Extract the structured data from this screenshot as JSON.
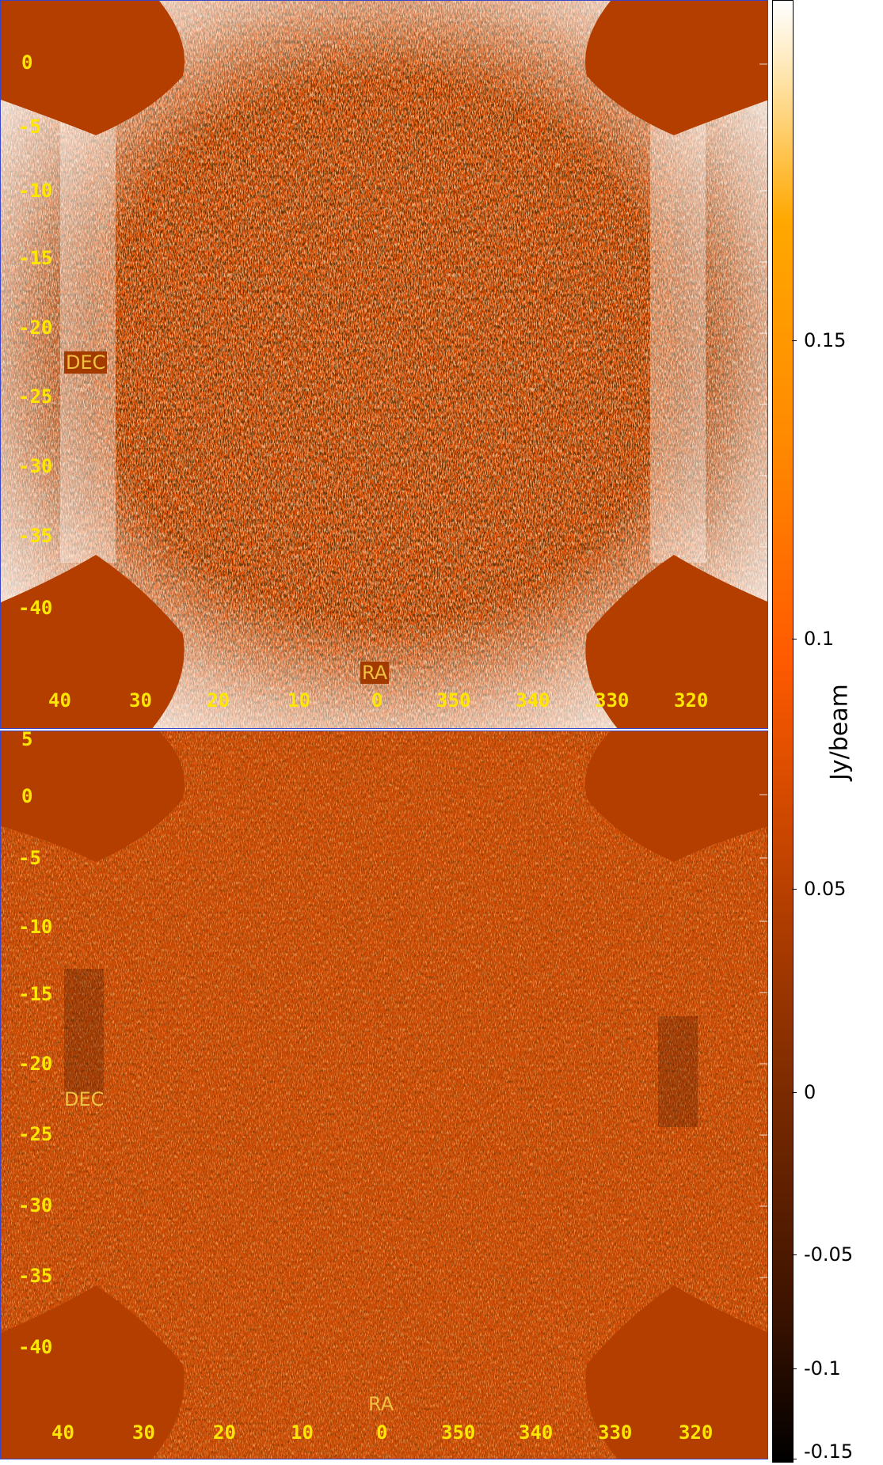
{
  "panels": [
    {
      "id": "top",
      "dec_ticks": [
        "0",
        "-5",
        "-10",
        "-15",
        "-20",
        "-25",
        "-30",
        "-35",
        "-40"
      ],
      "ra_ticks": [
        "40",
        "30",
        "20",
        "10",
        "0",
        "350",
        "340",
        "330",
        "320"
      ],
      "xlabel": "RA",
      "ylabel": "DEC",
      "noise_level": "high"
    },
    {
      "id": "bottom",
      "dec_ticks": [
        "5",
        "0",
        "-5",
        "-10",
        "-15",
        "-20",
        "-25",
        "-30",
        "-35",
        "-40"
      ],
      "ra_ticks": [
        "40",
        "30",
        "20",
        "10",
        "0",
        "350",
        "340",
        "330",
        "320"
      ],
      "xlabel": "RA",
      "ylabel": "DEC",
      "noise_level": "low"
    }
  ],
  "colorbar": {
    "title": "Jy/beam",
    "ticks": [
      "0.15",
      "0.1",
      "0.05",
      "0",
      "-0.05",
      "-0.1",
      "-0.15"
    ],
    "colors": [
      "#000000",
      "#7a2a00",
      "#ff6a00",
      "#ffa200",
      "#ffffff"
    ]
  }
}
